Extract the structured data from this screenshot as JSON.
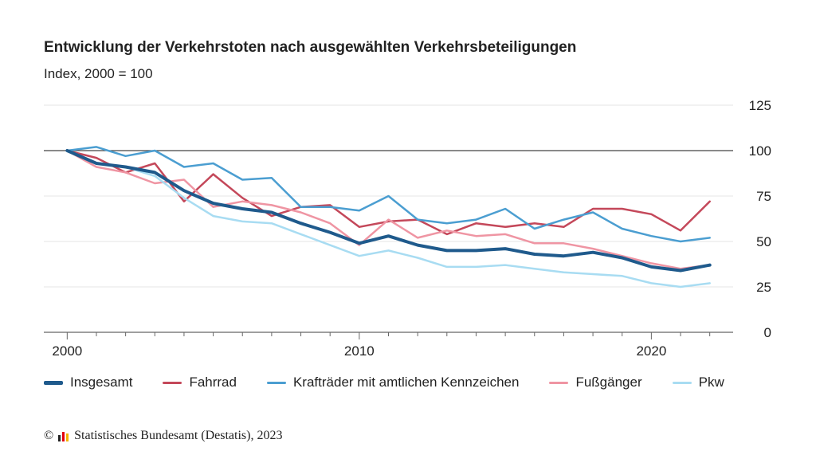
{
  "header": {
    "title": "Entwicklung der Verkehrstoten nach ausgewählten Verkehrsbeteiligungen",
    "subtitle": "Index, 2000 = 100"
  },
  "footer": {
    "copyright_symbol": "©",
    "source": "Statistisches Bundesamt (Destatis), 2023"
  },
  "colors": {
    "Insgesamt": "#1f5a8c",
    "Fahrrad": "#c4485a",
    "Kraftraeder": "#4b9ed1",
    "Fussgaenger": "#ef95a3",
    "Pkw": "#a8dcf2",
    "grid": "#e6e6e6",
    "baseline": "#444444",
    "axis": "#666666"
  },
  "chart_data": {
    "type": "line",
    "title": "Entwicklung der Verkehrstoten nach ausgewählten Verkehrsbeteiligungen",
    "subtitle": "Index, 2000 = 100",
    "xlabel": "",
    "ylabel": "",
    "x": [
      2000,
      2001,
      2002,
      2003,
      2004,
      2005,
      2006,
      2007,
      2008,
      2009,
      2010,
      2011,
      2012,
      2013,
      2014,
      2015,
      2016,
      2017,
      2018,
      2019,
      2020,
      2021,
      2022
    ],
    "xlim": [
      1999.2,
      2022.8
    ],
    "ylim": [
      0,
      125
    ],
    "x_ticks": [
      2000,
      2010,
      2020
    ],
    "x_tick_labels": [
      "2000",
      "2010",
      "2020"
    ],
    "y_ticks": [
      0,
      25,
      50,
      75,
      100,
      125
    ],
    "y_tick_labels": [
      "0",
      "25",
      "50",
      "75",
      "100",
      "125"
    ],
    "y_axis_side": "right",
    "reference_line": 100,
    "grid": true,
    "legend_position": "bottom",
    "series": [
      {
        "name": "Insgesamt",
        "color_key": "Insgesamt",
        "width": 4,
        "values": [
          100,
          93,
          91,
          88,
          78,
          71,
          68,
          66,
          60,
          55,
          49,
          53,
          48,
          45,
          45,
          46,
          43,
          42,
          44,
          41,
          36,
          34,
          37
        ]
      },
      {
        "name": "Fahrrad",
        "color_key": "Fahrrad",
        "width": 2.5,
        "values": [
          100,
          96,
          88,
          93,
          72,
          87,
          74,
          64,
          69,
          70,
          58,
          61,
          62,
          54,
          60,
          58,
          60,
          58,
          68,
          68,
          65,
          56,
          72
        ]
      },
      {
        "name": "Krafträder mit amtlichen Kennzeichen",
        "color_key": "Kraftraeder",
        "width": 2.5,
        "values": [
          100,
          102,
          97,
          100,
          91,
          93,
          84,
          85,
          69,
          69,
          67,
          75,
          62,
          60,
          62,
          68,
          57,
          62,
          66,
          57,
          53,
          50,
          52
        ]
      },
      {
        "name": "Fußgänger",
        "color_key": "Fussgaenger",
        "width": 2.5,
        "values": [
          100,
          91,
          88,
          82,
          84,
          69,
          72,
          70,
          66,
          60,
          48,
          62,
          52,
          56,
          53,
          54,
          49,
          49,
          46,
          42,
          38,
          35,
          37
        ]
      },
      {
        "name": "Pkw",
        "color_key": "Pkw",
        "width": 2.5,
        "values": [
          100,
          93,
          91,
          86,
          74,
          64,
          61,
          60,
          54,
          48,
          42,
          45,
          41,
          36,
          36,
          37,
          35,
          33,
          32,
          31,
          27,
          25,
          27
        ]
      }
    ]
  }
}
